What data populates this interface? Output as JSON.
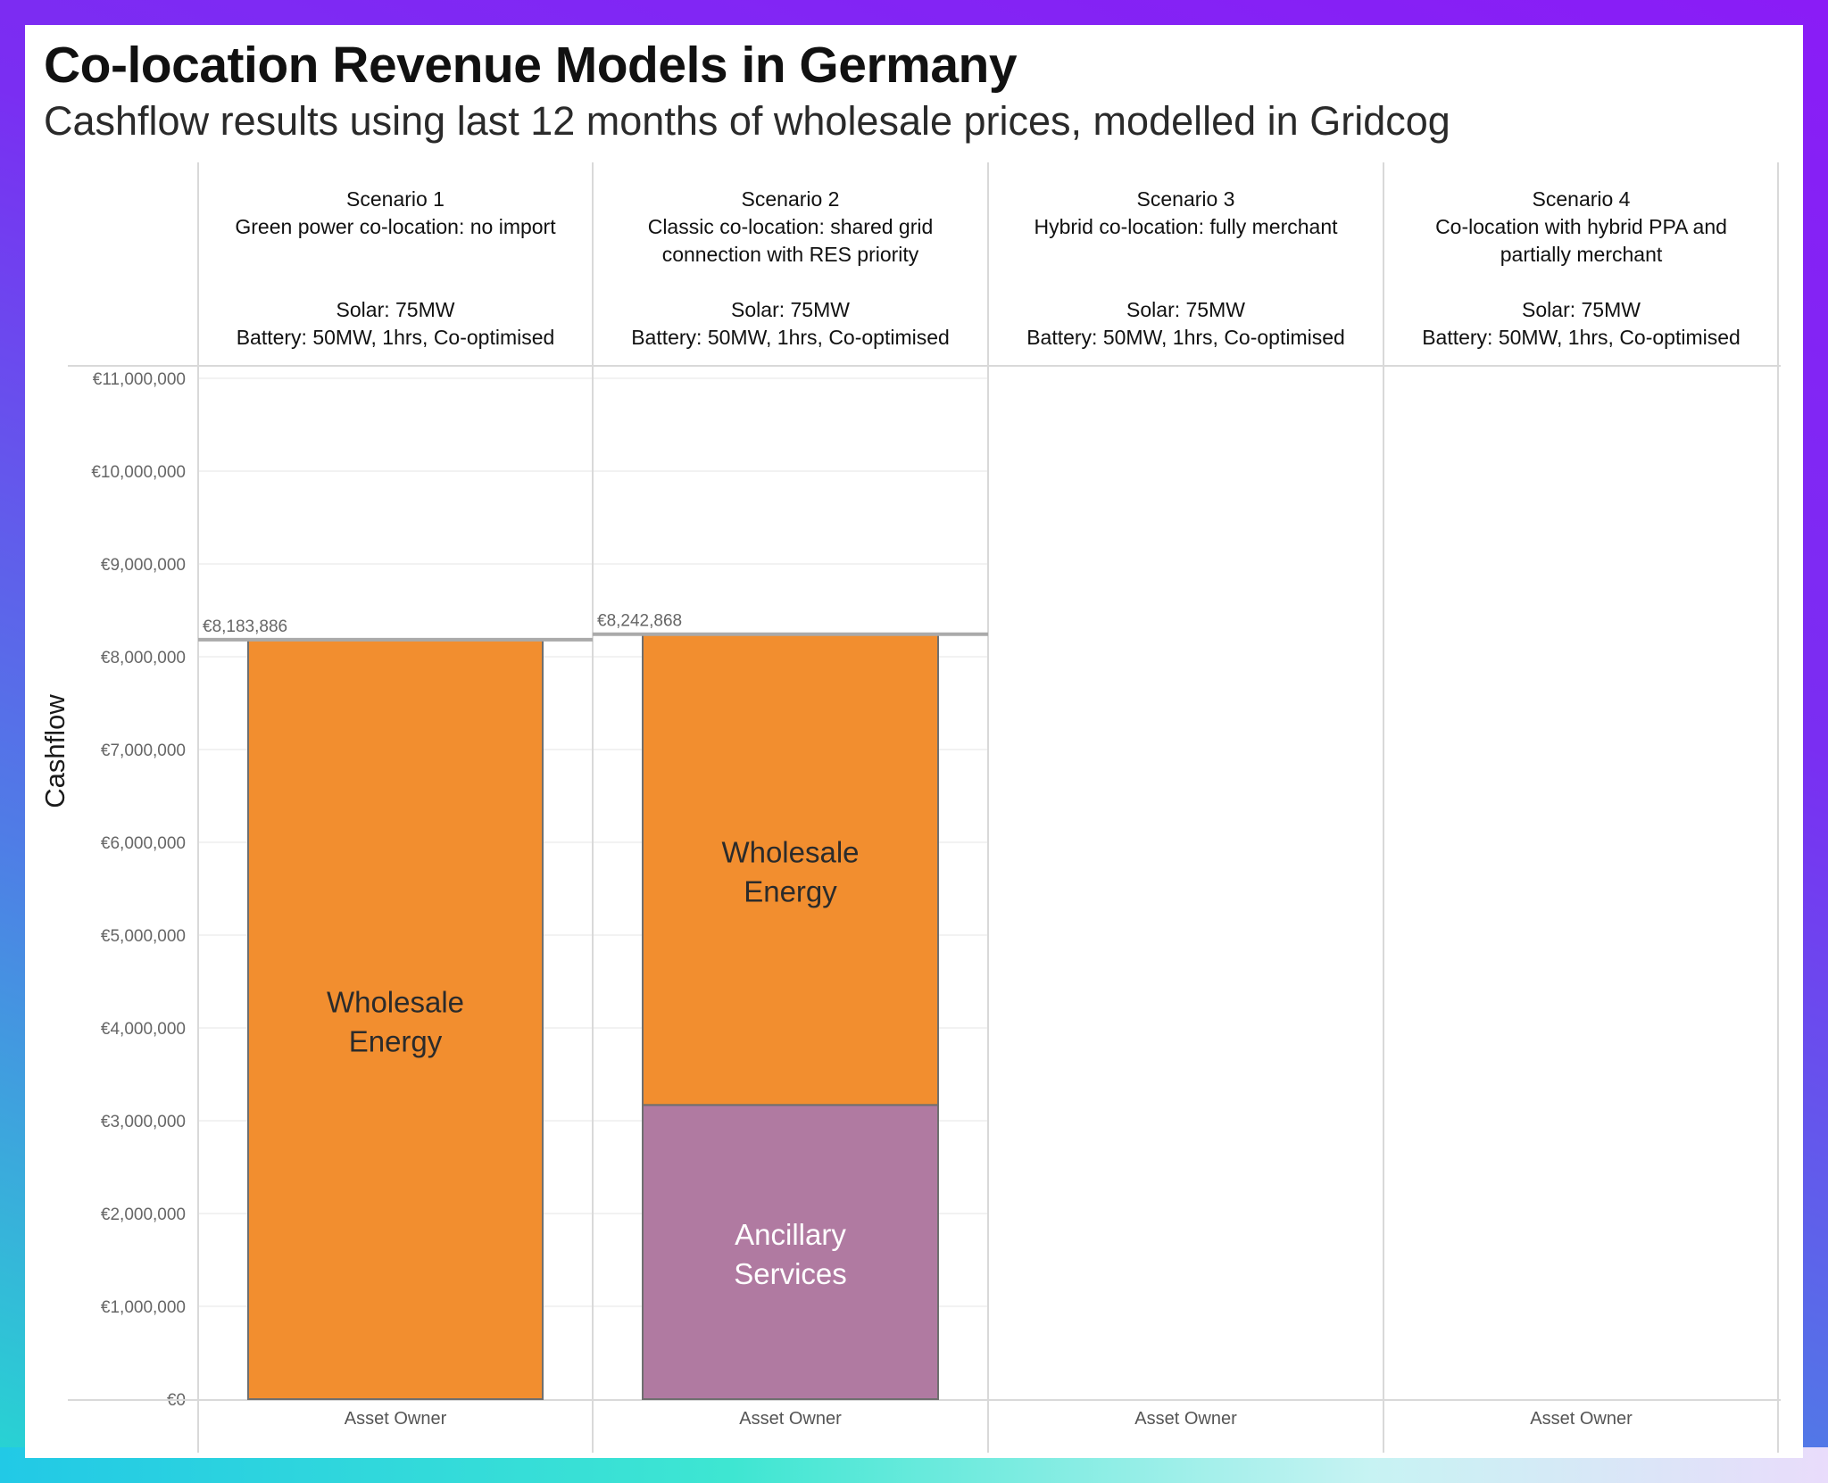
{
  "title": "Co-location Revenue Models in Germany",
  "subtitle": "Cashflow results using last 12 months of wholesale prices, modelled in Gridcog",
  "colors": {
    "wholesale": "#f28e2f",
    "ancillary": "#b07aa1",
    "grid": "#eeeeee",
    "divider": "#d9d9d9"
  },
  "chart_data": {
    "type": "bar",
    "stacked": true,
    "ylabel": "Cashflow",
    "ylim": [
      0,
      11000000
    ],
    "ytick_labels": [
      "€0",
      "€1,000,000",
      "€2,000,000",
      "€3,000,000",
      "€4,000,000",
      "€5,000,000",
      "€6,000,000",
      "€7,000,000",
      "€8,000,000",
      "€9,000,000",
      "€10,000,000",
      "€11,000,000"
    ],
    "panels": [
      {
        "header": [
          "Scenario 1",
          "Green power co-location: no import",
          "",
          "Solar: 75MW",
          "Battery: 50MW, 1hrs, Co-optimised"
        ],
        "category": "Asset Owner",
        "segments": [
          {
            "series": "Wholesale Energy",
            "value": 8183886,
            "label_lines": [
              "Wholesale",
              "Energy"
            ],
            "label_color": "#2b2b2b"
          }
        ],
        "total": 8183886,
        "total_label": "€8,183,886"
      },
      {
        "header": [
          "Scenario 2",
          "Classic co-location: shared grid",
          "connection with RES priority",
          "Solar: 75MW",
          "Battery: 50MW, 1hrs, Co-optimised"
        ],
        "category": "Asset Owner",
        "segments": [
          {
            "series": "Ancillary Services",
            "value": 3170000,
            "label_lines": [
              "Ancillary",
              "Services"
            ],
            "label_color": "#ffffff"
          },
          {
            "series": "Wholesale Energy",
            "value": 5072868,
            "label_lines": [
              "Wholesale",
              "Energy"
            ],
            "label_color": "#2b2b2b"
          }
        ],
        "total": 8242868,
        "total_label": "€8,242,868"
      },
      {
        "header": [
          "Scenario 3",
          "Hybrid co-location: fully merchant",
          "",
          "Solar: 75MW",
          "Battery: 50MW, 1hrs, Co-optimised"
        ],
        "category": "Asset Owner",
        "segments": [],
        "total": null,
        "total_label": ""
      },
      {
        "header": [
          "Scenario 4",
          "Co-location with hybrid PPA and",
          "partially merchant",
          "Solar: 75MW",
          "Battery: 50MW, 1hrs, Co-optimised"
        ],
        "category": "Asset Owner",
        "segments": [],
        "total": null,
        "total_label": ""
      }
    ]
  }
}
